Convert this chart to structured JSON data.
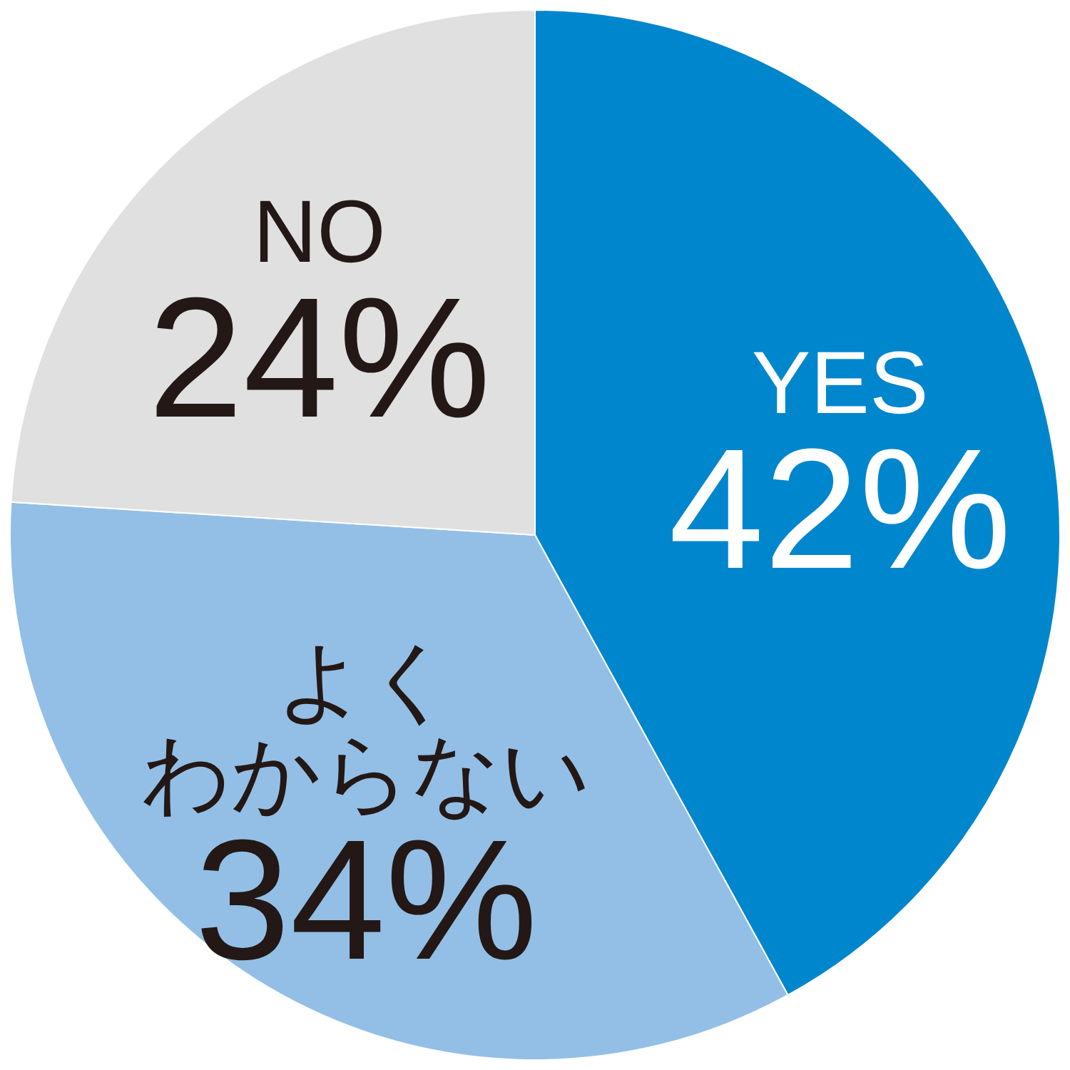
{
  "chart_data": {
    "type": "pie",
    "categories": [
      "YES",
      "よくわからない",
      "NO"
    ],
    "values": [
      42,
      34,
      24
    ],
    "value_labels": [
      "42%",
      "34%",
      "24%"
    ],
    "colors": [
      "#0086cd",
      "#93bfe6",
      "#e0e0e0"
    ],
    "legend": false
  }
}
